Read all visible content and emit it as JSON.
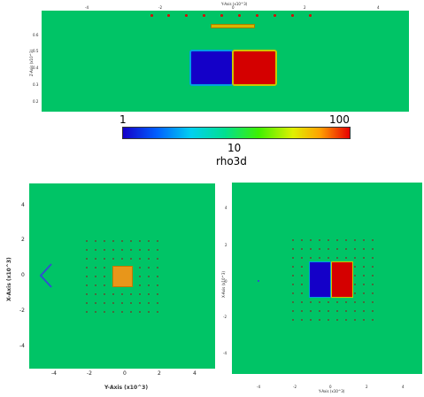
{
  "top_panel": {
    "x_axis_title": "Y-Axis (x10^3)",
    "x_ticks": [
      "-4",
      "-2",
      "0",
      "2",
      "4"
    ],
    "y_axis_title": "Z-Axis (x10^3)",
    "y_ticks": [
      "0.6",
      "0.5",
      "0.4",
      "0.3",
      "0.2"
    ]
  },
  "colorbar": {
    "min_label": "1",
    "mid_label": "10",
    "max_label": "100",
    "title": "rho3d",
    "colors": [
      "#1400c8",
      "#0080ff",
      "#00e0e0",
      "#00e080",
      "#40f000",
      "#e0f000",
      "#ffa000",
      "#e80000"
    ]
  },
  "bottom_left": {
    "x_axis_title": "Y-Axis (x10^3)",
    "x_ticks": [
      "-4",
      "-2",
      "0",
      "2",
      "4"
    ],
    "y_axis_title": "X-Axis (x10^3)",
    "y_ticks": [
      "4",
      "2",
      "0",
      "-2",
      "-4"
    ]
  },
  "bottom_right": {
    "x_axis_title": "Y-Axis (x10^3)",
    "x_ticks": [
      "-4",
      "-2",
      "0",
      "2",
      "4"
    ],
    "y_axis_title": "X-Axis (x10^3)",
    "y_ticks": [
      "4",
      "2",
      "0",
      "-2",
      "-4"
    ]
  }
}
